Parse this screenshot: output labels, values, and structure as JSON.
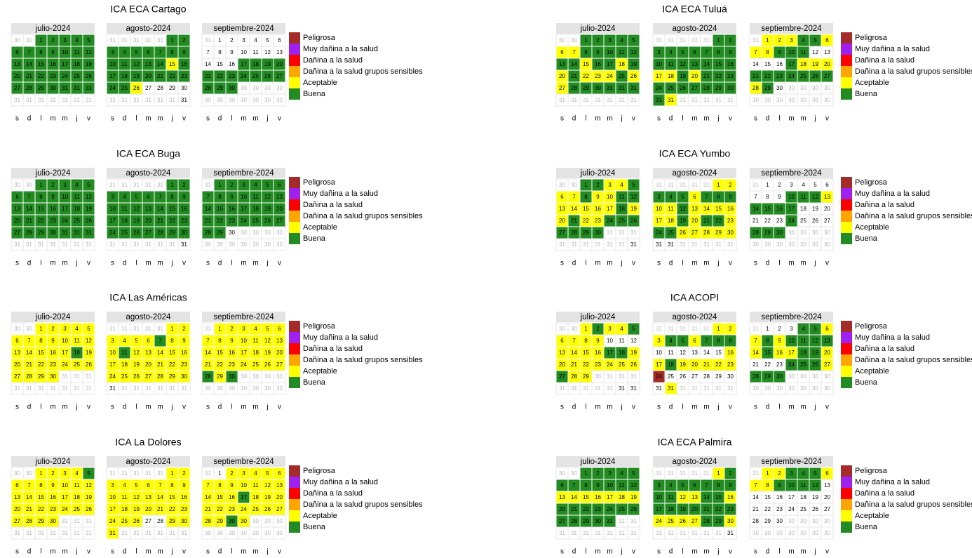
{
  "weekdays": [
    "s",
    "d",
    "l",
    "m",
    "m",
    "j",
    "v"
  ],
  "days": [
    [
      30,
      30,
      1,
      2,
      3,
      4,
      5,
      6,
      7,
      8,
      9,
      10,
      11,
      12,
      13,
      14,
      15,
      16,
      17,
      18,
      19,
      20,
      21,
      22,
      23,
      24,
      25,
      26,
      27,
      28,
      29,
      30,
      31,
      31,
      31,
      31,
      31,
      31,
      31,
      31,
      31,
      31
    ],
    [
      31,
      31,
      31,
      31,
      31,
      1,
      2,
      3,
      4,
      5,
      6,
      7,
      8,
      9,
      10,
      11,
      12,
      13,
      14,
      15,
      16,
      17,
      18,
      19,
      20,
      21,
      22,
      23,
      24,
      25,
      26,
      27,
      28,
      29,
      30,
      31,
      31,
      31,
      31,
      31,
      31,
      31
    ],
    [
      31,
      1,
      2,
      3,
      4,
      5,
      6,
      7,
      8,
      9,
      10,
      11,
      12,
      13,
      14,
      15,
      16,
      17,
      18,
      19,
      20,
      21,
      22,
      23,
      24,
      25,
      26,
      27,
      28,
      29,
      30,
      30,
      30,
      30,
      30,
      30,
      30,
      30,
      30,
      30,
      30,
      30
    ]
  ],
  "legend": [
    {
      "label": "Peligrosa",
      "color": "#a52a2a"
    },
    {
      "label": "Muy dañina a la salud",
      "color": "#a020f0"
    },
    {
      "label": "Dañina a la salud",
      "color": "#ff0000"
    },
    {
      "label": "Dañina a la salud grupos sensibles",
      "color": "#ffa500"
    },
    {
      "label": "Aceptable",
      "color": "#ffff00"
    },
    {
      "label": "Buena",
      "color": "#228b22"
    }
  ],
  "panels": [
    {
      "title": "ICA ECA Cartago",
      "months": [
        {
          "name": "julio-2024",
          "levels": "pp555555555555555555555555555555555ppppppppp"
        },
        {
          "name": "agosto-2024",
          "levels": "ppppp55555555555555455555555554wwwwpppppp"
        },
        {
          "name": "septiembre-2024",
          "levels": "pwwwwwwwwwwwwwwww55555555555555pppppppppppp"
        }
      ]
    },
    {
      "title": "ICA ECA Tuluá",
      "months": [
        {
          "name": "julio-2024",
          "levels": "pp555554455555554554545444544555555ppppppppp"
        },
        {
          "name": "agosto-2024",
          "levels": "ppppp55555555555555554454555555555554pppppp"
        },
        {
          "name": "septiembre-2024",
          "levels": "p44455444555wwwww5444555555545wppppppppppp"
        }
      ]
    },
    {
      "title": "ICA ECA Buga",
      "months": [
        {
          "name": "julio-2024",
          "levels": "pp555555555555555555555555555555555ppppppppp"
        },
        {
          "name": "agosto-2024",
          "levels": "ppppp555555555555555555555555555555pppppp"
        },
        {
          "name": "septiembre-2024",
          "levels": "p55555555555555555555555555555wppppppppppp"
        }
      ]
    },
    {
      "title": "ICA ECA Yumbo",
      "months": [
        {
          "name": "julio-2024",
          "levels": "pp554454454455444445445445555555ppppppppp"
        },
        {
          "name": "agosto-2024",
          "levels": "ppppp445554555445444444545545544444wwpppppp"
        },
        {
          "name": "septiembre-2024",
          "levels": "pwwwwwwwww55545555wwwwww5www555pppppppppppp"
        }
      ]
    },
    {
      "title": "ICA Las Américas",
      "months": [
        {
          "name": "julio-2024",
          "levels": "pp444444444444444445444444444444pppppppppp"
        },
        {
          "name": "agosto-2024",
          "levels": "ppppp444444544454444444444444444444wpppppp"
        },
        {
          "name": "septiembre-2024",
          "levels": "p444444444444444444444444444545pppppppppppp"
        }
      ]
    },
    {
      "title": "ICA ACOPI",
      "months": [
        {
          "name": "julio-2024",
          "levels": "pp454454444www44445544444444544ppppppppp"
        },
        {
          "name": "agosto-2024",
          "levels": "ppppp444554555wwwwww445444440wwwwwww4pppppp"
        },
        {
          "name": "septiembre-2024",
          "levels": "pwww5544545555454455 4www5554555pppppppppppp"
        }
      ]
    },
    {
      "title": "ICA La Dolores",
      "months": [
        {
          "name": "julio-2024",
          "levels": "pp444454444444444444444444444444pppppppppp"
        },
        {
          "name": "agosto-2024",
          "levels": "ppppp44444444444444444444444444ww444pppppp"
        },
        {
          "name": "septiembre-2024",
          "levels": "pw444444444444444544444444444454pppppppppppp"
        }
      ]
    },
    {
      "title": "ICA ECA Palmira",
      "months": [
        {
          "name": "julio-2024",
          "levels": "pp5555555555554444444555555555555ppppppppp"
        },
        {
          "name": "agosto-2024",
          "levels": "ppppp45555555555445545555555444455 4pppppp"
        },
        {
          "name": "septiembre-2024",
          "levels": "p44555444 5555wwwwwwwwwwwwwwwwwwpppppppppppp"
        }
      ]
    }
  ]
}
